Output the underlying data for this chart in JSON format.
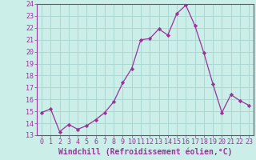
{
  "x": [
    0,
    1,
    2,
    3,
    4,
    5,
    6,
    7,
    8,
    9,
    10,
    11,
    12,
    13,
    14,
    15,
    16,
    17,
    18,
    19,
    20,
    21,
    22,
    23
  ],
  "y": [
    14.9,
    15.2,
    13.3,
    13.9,
    13.5,
    13.8,
    14.3,
    14.9,
    15.8,
    17.4,
    18.6,
    21.0,
    21.1,
    21.9,
    21.4,
    23.2,
    23.9,
    22.2,
    19.9,
    17.3,
    14.9,
    16.4,
    15.9,
    15.5
  ],
  "line_color": "#993399",
  "marker": "D",
  "marker_size": 2.2,
  "bg_color": "#cceee8",
  "grid_color": "#aad8d2",
  "xlabel": "Windchill (Refroidissement éolien,°C)",
  "ylim": [
    13,
    24
  ],
  "xlim": [
    -0.5,
    23.5
  ],
  "yticks": [
    13,
    14,
    15,
    16,
    17,
    18,
    19,
    20,
    21,
    22,
    23,
    24
  ],
  "xticks": [
    0,
    1,
    2,
    3,
    4,
    5,
    6,
    7,
    8,
    9,
    10,
    11,
    12,
    13,
    14,
    15,
    16,
    17,
    18,
    19,
    20,
    21,
    22,
    23
  ],
  "xlabel_fontsize": 7.0,
  "tick_fontsize": 6.0
}
